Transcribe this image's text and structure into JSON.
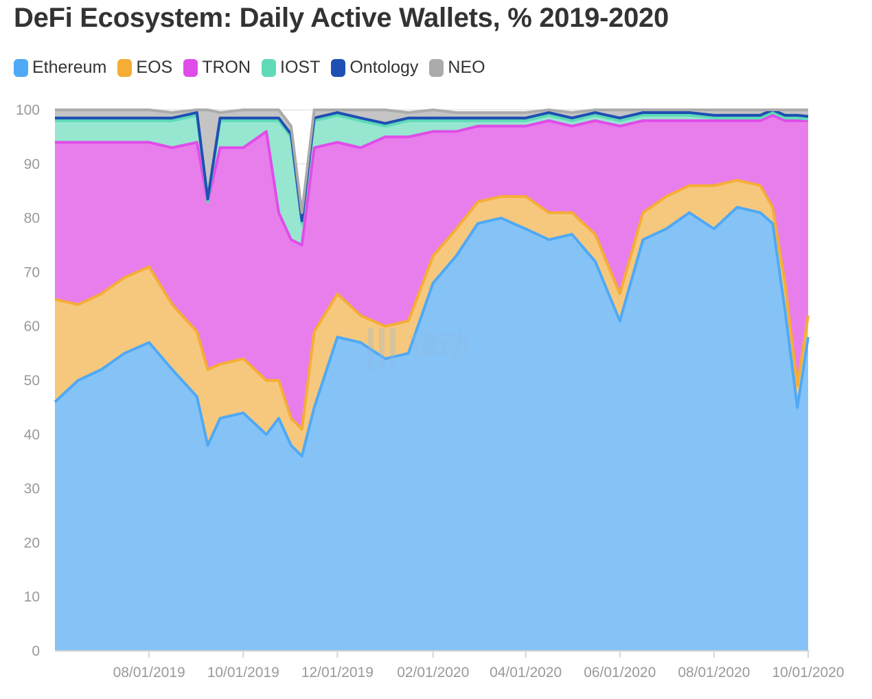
{
  "chart_data": {
    "type": "area",
    "stacked": true,
    "normalized_percent": true,
    "title": "DeFi Ecosystem: Daily Active Wallets, % 2019-2020",
    "ylim": [
      0,
      100
    ],
    "y_ticks": [
      "0",
      "10",
      "20",
      "30",
      "40",
      "50",
      "60",
      "70",
      "80",
      "90",
      "100"
    ],
    "x_ticks": [
      "08/01/2019",
      "10/01/2019",
      "12/01/2019",
      "02/01/2020",
      "04/01/2020",
      "06/01/2020",
      "08/01/2020",
      "10/01/2020"
    ],
    "x_range": [
      "06/01/2019",
      "10/01/2020"
    ],
    "legend_position": "top-left",
    "grid": true,
    "watermark": "律动",
    "dates": [
      "06/01/2019",
      "06/16/2019",
      "07/01/2019",
      "07/16/2019",
      "08/01/2019",
      "08/16/2019",
      "09/01/2019",
      "09/08/2019",
      "09/16/2019",
      "10/01/2019",
      "10/16/2019",
      "10/24/2019",
      "11/01/2019",
      "11/08/2019",
      "11/16/2019",
      "12/01/2019",
      "12/16/2019",
      "01/01/2020",
      "01/16/2020",
      "02/01/2020",
      "02/16/2020",
      "03/01/2020",
      "03/16/2020",
      "04/01/2020",
      "04/16/2020",
      "05/01/2020",
      "05/16/2020",
      "06/01/2020",
      "06/16/2020",
      "07/01/2020",
      "07/16/2020",
      "08/01/2020",
      "08/16/2020",
      "08/31/2020",
      "09/08/2020",
      "09/16/2020",
      "09/24/2020",
      "10/01/2020"
    ],
    "series": [
      {
        "name": "Ethereum",
        "color": "#4fa9f5",
        "fill": "#85c3f7",
        "values": [
          46,
          50,
          52,
          55,
          57,
          52,
          47,
          38,
          43,
          44,
          40,
          43,
          38,
          36,
          45,
          58,
          57,
          54,
          55,
          68,
          73,
          79,
          80,
          78,
          76,
          77,
          72,
          61,
          76,
          78,
          81,
          78,
          82,
          81,
          79,
          63,
          45,
          58
        ]
      },
      {
        "name": "EOS",
        "color": "#f5ad36",
        "fill": "#f5c87e",
        "values": [
          19,
          14,
          14,
          14,
          14,
          12,
          12,
          14,
          10,
          10,
          10,
          7,
          5,
          5,
          14,
          8,
          5,
          6,
          6,
          5,
          5,
          4,
          4,
          6,
          5,
          4,
          5,
          5,
          5,
          6,
          5,
          8,
          5,
          5,
          3,
          5,
          4,
          4
        ]
      },
      {
        "name": "TRON",
        "color": "#e04ce8",
        "fill": "#e87eec",
        "values": [
          29,
          30,
          28,
          25,
          23,
          29,
          35,
          31,
          40,
          39,
          46,
          31,
          33,
          34,
          34,
          28,
          31,
          35,
          34,
          23,
          18,
          14,
          13,
          13,
          17,
          16,
          21,
          31,
          17,
          14,
          12,
          12,
          11,
          12,
          17,
          30,
          49,
          36
        ]
      },
      {
        "name": "IOST",
        "color": "#5edab7",
        "fill": "#96e6d0",
        "values": [
          4,
          4,
          4,
          4,
          4,
          5,
          5,
          0,
          5,
          5,
          2,
          17,
          19,
          4,
          5,
          5,
          5,
          2,
          3,
          2,
          2,
          1,
          1,
          1,
          1,
          1,
          1,
          1,
          1,
          1,
          1,
          0.5,
          0.5,
          0.5,
          0.5,
          0.5,
          0.5,
          0.3
        ]
      },
      {
        "name": "Ontology",
        "color": "#1e4fb3",
        "fill": "#1e4fb3",
        "values": [
          0.5,
          0.5,
          0.5,
          0.5,
          0.5,
          0.5,
          0.5,
          0.5,
          0.5,
          0.5,
          0.5,
          0.5,
          0.5,
          0.5,
          0.5,
          0.5,
          0.5,
          0.5,
          0.5,
          0.5,
          0.5,
          0.5,
          0.5,
          0.5,
          0.5,
          0.5,
          0.5,
          0.5,
          0.5,
          0.5,
          0.5,
          0.5,
          0.5,
          0.5,
          0.5,
          0.5,
          0.5,
          0.5
        ]
      },
      {
        "name": "NEO",
        "color": "#ababab",
        "fill": "#c4c4c4",
        "values": [
          1.5,
          1.5,
          1.5,
          1.5,
          1.5,
          1,
          0.5,
          16.5,
          1,
          1.5,
          1.5,
          1.5,
          1.5,
          1.5,
          1.5,
          0.5,
          1.5,
          2.5,
          1,
          1.5,
          1,
          1,
          1,
          1,
          0.5,
          1,
          0.5,
          1.5,
          0.5,
          0.5,
          0.5,
          1,
          1,
          1,
          0,
          1,
          1,
          1.2
        ]
      }
    ]
  }
}
